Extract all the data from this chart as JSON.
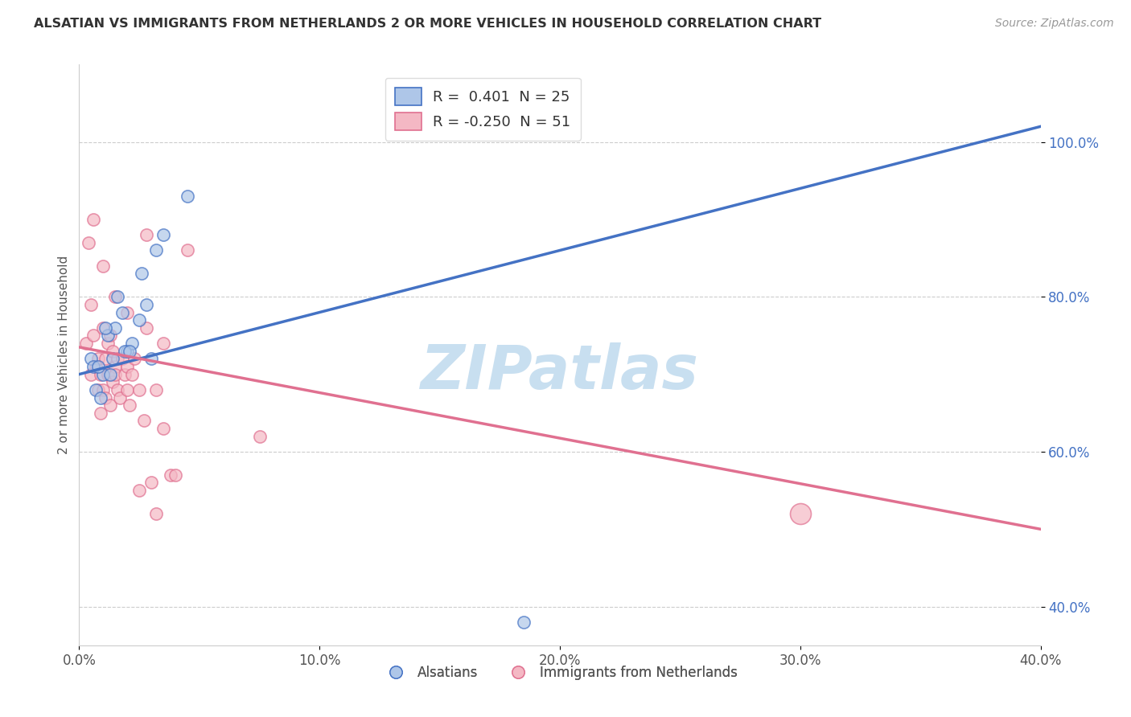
{
  "title": "ALSATIAN VS IMMIGRANTS FROM NETHERLANDS 2 OR MORE VEHICLES IN HOUSEHOLD CORRELATION CHART",
  "source": "Source: ZipAtlas.com",
  "ylabel": "2 or more Vehicles in Household",
  "x_tick_labels": [
    "0.0%",
    "10.0%",
    "20.0%",
    "30.0%",
    "40.0%"
  ],
  "x_tick_values": [
    0.0,
    10.0,
    20.0,
    30.0,
    40.0
  ],
  "y_tick_labels": [
    "40.0%",
    "60.0%",
    "80.0%",
    "100.0%"
  ],
  "y_tick_values": [
    40.0,
    60.0,
    80.0,
    100.0
  ],
  "xlim": [
    0.0,
    40.0
  ],
  "ylim": [
    35.0,
    110.0
  ],
  "blue_color": "#aec6e8",
  "blue_line_color": "#4472c4",
  "pink_color": "#f4b8c4",
  "pink_line_color": "#e07090",
  "legend_blue_label": "R =  0.401  N = 25",
  "legend_pink_label": "R = -0.250  N = 51",
  "legend1_label": "Alsatians",
  "legend2_label": "Immigrants from Netherlands",
  "watermark": "ZIPatlas",
  "watermark_color": "#c8dff0",
  "background_color": "#ffffff",
  "blue_trendline_x0": 0.0,
  "blue_trendline_y0": 70.0,
  "blue_trendline_x1": 40.0,
  "blue_trendline_y1": 102.0,
  "pink_trendline_x0": 0.0,
  "pink_trendline_y0": 73.5,
  "pink_trendline_x1": 40.0,
  "pink_trendline_y1": 50.0,
  "blue_x": [
    0.5,
    1.0,
    1.2,
    1.5,
    1.8,
    2.0,
    2.2,
    2.5,
    2.8,
    3.0,
    0.7,
    0.9,
    1.3,
    1.6,
    2.6,
    3.5,
    4.5,
    0.6,
    1.1,
    1.9,
    0.8,
    1.4,
    2.1,
    3.2,
    18.5
  ],
  "blue_y": [
    72.0,
    70.0,
    75.0,
    76.0,
    78.0,
    73.0,
    74.0,
    77.0,
    79.0,
    72.0,
    68.0,
    67.0,
    70.0,
    80.0,
    83.0,
    88.0,
    93.0,
    71.0,
    76.0,
    73.0,
    71.0,
    72.0,
    73.0,
    86.0,
    38.0
  ],
  "pink_x": [
    0.3,
    0.5,
    0.5,
    0.6,
    0.7,
    0.8,
    0.8,
    0.9,
    0.9,
    1.0,
    1.0,
    1.1,
    1.1,
    1.2,
    1.2,
    1.3,
    1.3,
    1.4,
    1.4,
    1.5,
    1.5,
    1.6,
    1.6,
    1.7,
    1.8,
    1.9,
    2.0,
    2.0,
    2.1,
    2.2,
    2.3,
    2.5,
    2.5,
    2.7,
    2.8,
    3.0,
    3.2,
    3.2,
    3.5,
    3.8,
    4.0,
    4.5,
    0.4,
    0.6,
    1.0,
    1.5,
    2.0,
    2.8,
    3.5,
    7.5,
    30.0
  ],
  "pink_y": [
    74.0,
    79.0,
    70.0,
    75.0,
    71.0,
    68.0,
    72.0,
    70.0,
    65.0,
    68.0,
    76.0,
    67.0,
    72.0,
    74.0,
    70.0,
    66.0,
    75.0,
    69.0,
    73.0,
    71.0,
    70.0,
    68.0,
    72.0,
    67.0,
    72.0,
    70.0,
    71.0,
    68.0,
    66.0,
    70.0,
    72.0,
    68.0,
    55.0,
    64.0,
    76.0,
    56.0,
    52.0,
    68.0,
    63.0,
    57.0,
    57.0,
    86.0,
    87.0,
    90.0,
    84.0,
    80.0,
    78.0,
    88.0,
    74.0,
    62.0,
    52.0
  ],
  "blue_dot_size": 120,
  "pink_dot_size": 120,
  "large_pink_size": 350
}
